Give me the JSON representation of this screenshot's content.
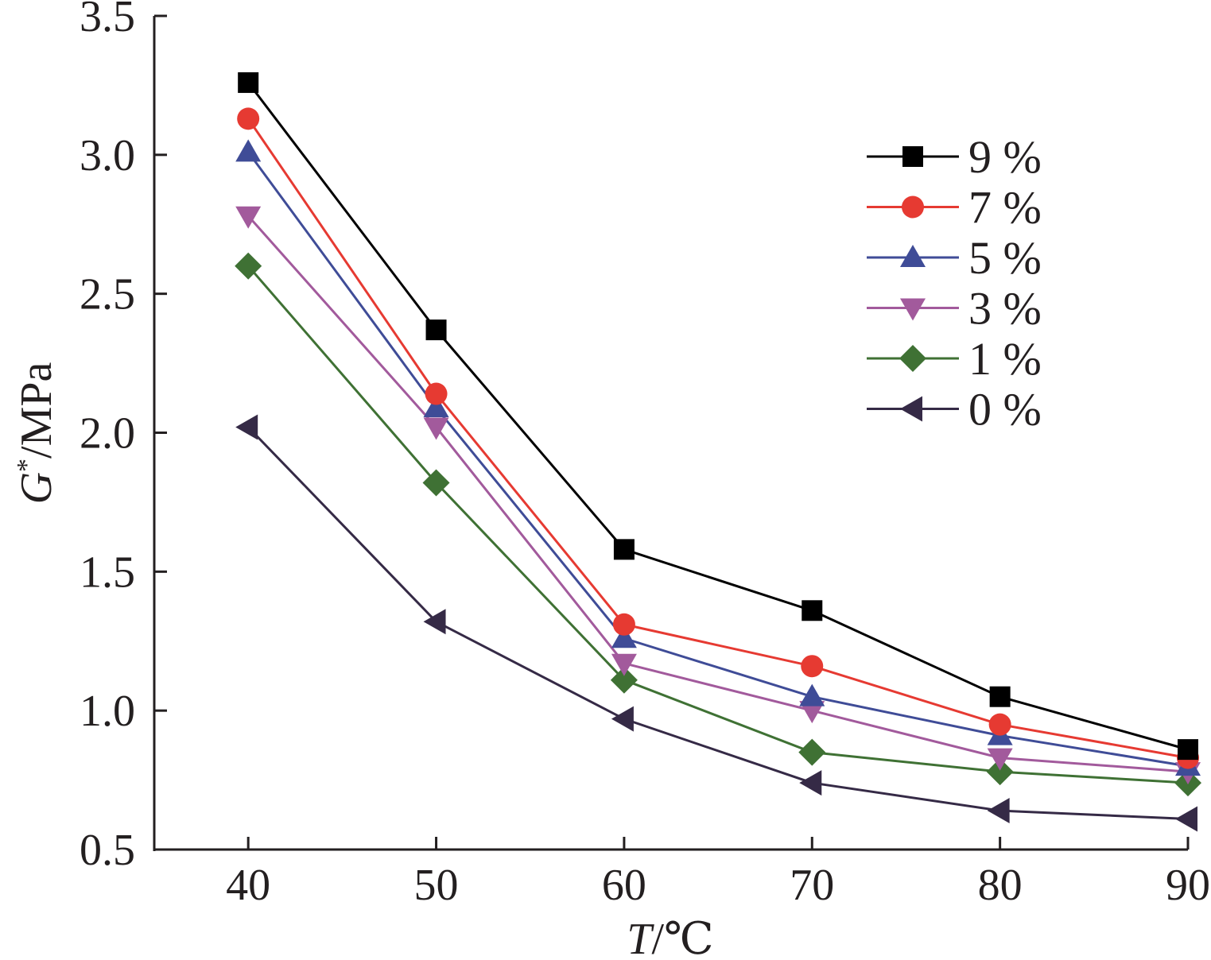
{
  "chart_data": {
    "type": "line",
    "xlabel_var": "T",
    "xlabel_unit": "/℃",
    "ylabel_var": "G",
    "ylabel_sup": "*",
    "ylabel_unit": "/MPa",
    "x": [
      40,
      50,
      60,
      70,
      80,
      90
    ],
    "xlim": [
      35,
      90
    ],
    "ylim": [
      0.5,
      3.5
    ],
    "xticks": [
      "40",
      "50",
      "60",
      "70",
      "80",
      "90"
    ],
    "yticks": [
      "0.5",
      "1.0",
      "1.5",
      "2.0",
      "2.5",
      "3.0",
      "3.5"
    ],
    "legend_position": "top-right",
    "series": [
      {
        "name": "9 %",
        "color": "#000000",
        "marker": "square",
        "values": [
          3.26,
          2.37,
          1.58,
          1.36,
          1.05,
          0.86
        ]
      },
      {
        "name": "7 %",
        "color": "#e63a32",
        "marker": "circle",
        "values": [
          3.13,
          2.14,
          1.31,
          1.16,
          0.95,
          0.83
        ]
      },
      {
        "name": "5 %",
        "color": "#3f4c97",
        "marker": "triangle-up",
        "values": [
          3.01,
          2.09,
          1.26,
          1.05,
          0.91,
          0.8
        ]
      },
      {
        "name": "3 %",
        "color": "#a25a9c",
        "marker": "triangle-down",
        "values": [
          2.78,
          2.02,
          1.17,
          1.0,
          0.83,
          0.78
        ]
      },
      {
        "name": "1 %",
        "color": "#3f7134",
        "marker": "diamond",
        "values": [
          2.6,
          1.82,
          1.11,
          0.85,
          0.78,
          0.74
        ]
      },
      {
        "name": "0 %",
        "color": "#352a46",
        "marker": "triangle-left",
        "values": [
          2.02,
          1.32,
          0.97,
          0.74,
          0.64,
          0.61
        ]
      }
    ]
  }
}
